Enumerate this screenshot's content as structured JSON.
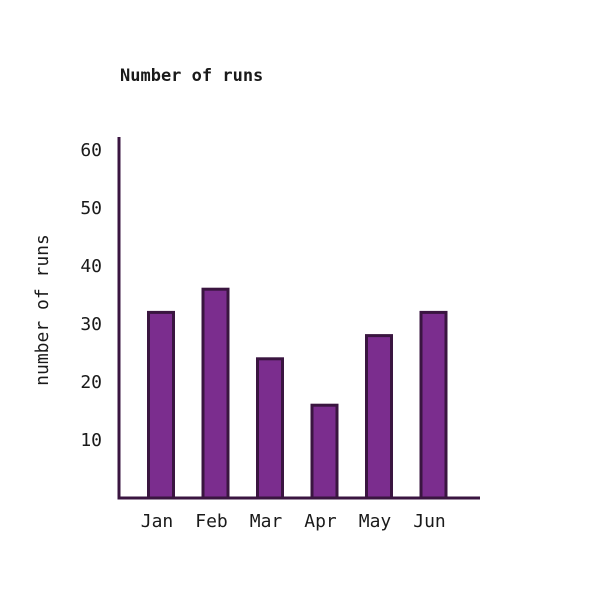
{
  "chart_data": {
    "type": "bar",
    "title": "Number of runs",
    "xlabel": "",
    "ylabel": "number of runs",
    "categories": [
      "Jan",
      "Feb",
      "Mar",
      "Apr",
      "May",
      "Jun"
    ],
    "values": [
      32,
      36,
      24,
      16,
      28,
      32
    ],
    "yticks": [
      10,
      20,
      30,
      40,
      50,
      60
    ],
    "ylim": [
      0,
      62
    ],
    "grid": false,
    "colors": {
      "bar_fill": "#7b2d8e",
      "bar_stroke": "#3a1540",
      "axis": "#3a1540"
    }
  }
}
